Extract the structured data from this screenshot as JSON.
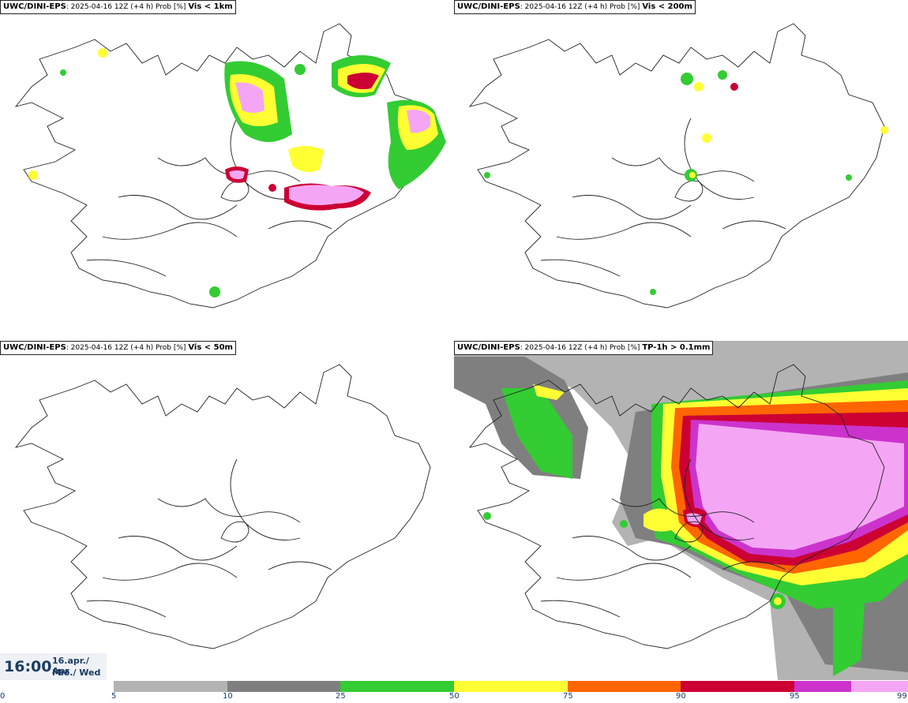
{
  "panels": [
    {
      "model": "UWC/DINI-EPS",
      "run": ": 2025-04-16 12Z (+4 h) Prob [%]",
      "param": "Vis < 1km"
    },
    {
      "model": "UWC/DINI-EPS",
      "run": ": 2025-04-16 12Z (+4 h) Prob [%]",
      "param": "Vis < 200m"
    },
    {
      "model": "UWC/DINI-EPS",
      "run": ": 2025-04-16 12Z (+4 h) Prob [%]",
      "param": "Vis < 50m"
    },
    {
      "model": "UWC/DINI-EPS",
      "run": ": 2025-04-16 12Z (+4 h) Prob [%]",
      "param": "TP-1h > 0.1mm"
    }
  ],
  "valid": {
    "time": "16:00",
    "date": "16.apr./ Apr",
    "weekday": "Mið./ Wed"
  },
  "colorscale": {
    "ticks": [
      "0",
      "5",
      "10",
      "25",
      "50",
      "75",
      "90",
      "95",
      "99"
    ],
    "colors": [
      "#ffffff",
      "#b3b3b3",
      "#7f7f7f",
      "#33cc33",
      "#ffff33",
      "#ff6600",
      "#cc0033",
      "#cc33cc",
      "#f4a6f4"
    ]
  }
}
